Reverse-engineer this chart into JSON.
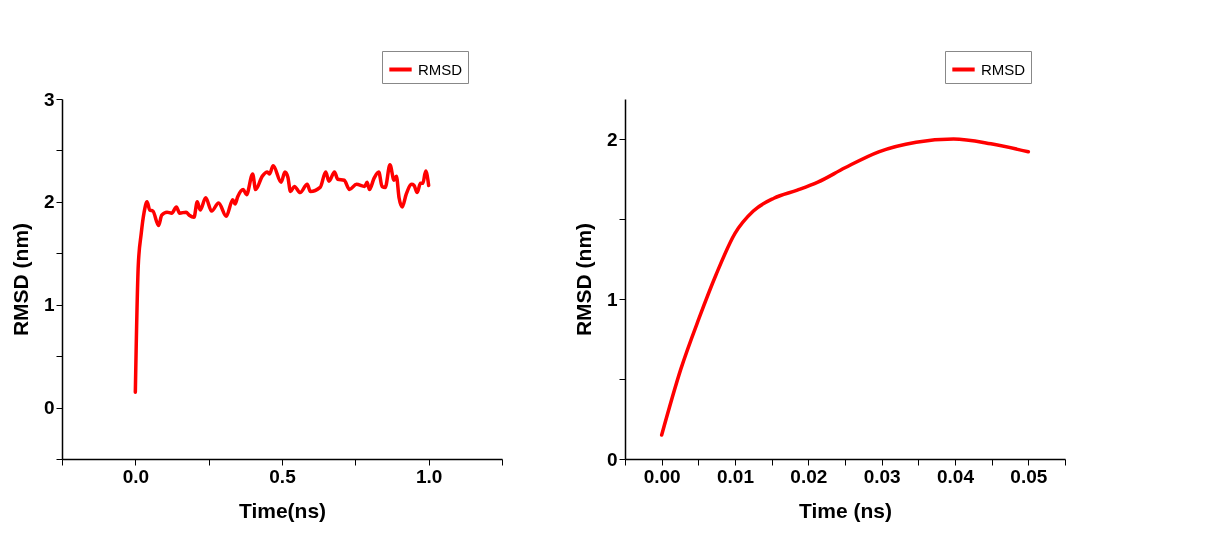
{
  "chart_data": [
    {
      "type": "line",
      "xlabel": "Time(ns)",
      "ylabel": "RMSD (nm)",
      "legend": "top right",
      "grid": false,
      "xlim": [
        -0.25,
        1.25
      ],
      "ylim": [
        -0.5,
        3
      ],
      "xticks": [
        {
          "value": -0.25,
          "label": null
        },
        {
          "value": 0,
          "label": "0.0"
        },
        {
          "value": 0.25,
          "label": null
        },
        {
          "value": 0.5,
          "label": "0.5"
        },
        {
          "value": 0.75,
          "label": null
        },
        {
          "value": 1,
          "label": "1.0"
        },
        {
          "value": 1.25,
          "label": null
        }
      ],
      "yticks": [
        {
          "value": -0.5,
          "label": null
        },
        0,
        {
          "value": 0.5,
          "label": null
        },
        1,
        {
          "value": 1.5,
          "label": null
        },
        2,
        {
          "value": 2.5,
          "label": null
        },
        3
      ],
      "series": [
        {
          "name": "RMSD",
          "color": "#ff0000",
          "x": [
            0,
            0.01,
            0.02,
            0.03,
            0.04,
            0.049,
            0.06,
            0.079,
            0.09,
            0.108,
            0.124,
            0.14,
            0.151,
            0.173,
            0.184,
            0.2,
            0.211,
            0.221,
            0.24,
            0.26,
            0.284,
            0.31,
            0.332,
            0.34,
            0.349,
            0.368,
            0.379,
            0.4,
            0.41,
            0.433,
            0.45,
            0.457,
            0.47,
            0.497,
            0.51,
            0.52,
            0.529,
            0.542,
            0.562,
            0.586,
            0.597,
            0.63,
            0.649,
            0.66,
            0.679,
            0.69,
            0.712,
            0.73,
            0.754,
            0.782,
            0.79,
            0.798,
            0.814,
            0.83,
            0.841,
            0.852,
            0.868,
            0.882,
            0.89,
            0.899,
            0.91,
            0.923,
            0.942,
            0.95,
            0.961,
            0.972,
            0.98,
            0.99,
            1.0
          ],
          "values": [
            0.15,
            1.38,
            1.69,
            1.9,
            2.0,
            1.92,
            1.91,
            1.77,
            1.87,
            1.9,
            1.89,
            1.95,
            1.89,
            1.9,
            1.87,
            1.85,
            2.0,
            1.92,
            2.04,
            1.91,
            1.99,
            1.86,
            2.02,
            1.98,
            2.05,
            2.12,
            2.07,
            2.27,
            2.12,
            2.25,
            2.29,
            2.27,
            2.35,
            2.19,
            2.29,
            2.24,
            2.1,
            2.15,
            2.09,
            2.17,
            2.1,
            2.14,
            2.29,
            2.2,
            2.29,
            2.22,
            2.21,
            2.12,
            2.17,
            2.15,
            2.19,
            2.12,
            2.23,
            2.29,
            2.15,
            2.14,
            2.36,
            2.21,
            2.25,
            2.04,
            1.95,
            2.07,
            2.17,
            2.16,
            2.09,
            2.18,
            2.18,
            2.3,
            2.16
          ]
        }
      ]
    },
    {
      "type": "line",
      "xlabel": "Time (ns)",
      "ylabel": "RMSD (nm)",
      "legend": "top right",
      "grid": false,
      "xlim": [
        -0.005,
        0.055
      ],
      "ylim": [
        0,
        2.25
      ],
      "xticks": [
        {
          "value": -0.005,
          "label": null
        },
        {
          "value": 0,
          "label": "0.00"
        },
        {
          "value": 0.005,
          "label": null
        },
        0.01,
        {
          "value": 0.015,
          "label": null
        },
        0.02,
        {
          "value": 0.025,
          "label": null
        },
        0.03,
        {
          "value": 0.035,
          "label": null
        },
        0.04,
        {
          "value": 0.045,
          "label": null
        },
        0.05,
        {
          "value": 0.055,
          "label": null
        }
      ],
      "yticks": [
        0,
        {
          "value": 0.5,
          "label": null
        },
        1,
        {
          "value": 1.5,
          "label": null
        },
        2
      ],
      "series": [
        {
          "name": "RMSD",
          "color": "#ff0000",
          "x": [
            0,
            0.0026,
            0.0051,
            0.0074,
            0.01,
            0.0125,
            0.0153,
            0.0185,
            0.0213,
            0.025,
            0.0296,
            0.0347,
            0.0398,
            0.0449,
            0.05
          ],
          "values": [
            0.15,
            0.56,
            0.88,
            1.15,
            1.41,
            1.55,
            1.63,
            1.68,
            1.73,
            1.82,
            1.92,
            1.98,
            2.0,
            1.97,
            1.92
          ]
        }
      ]
    }
  ]
}
